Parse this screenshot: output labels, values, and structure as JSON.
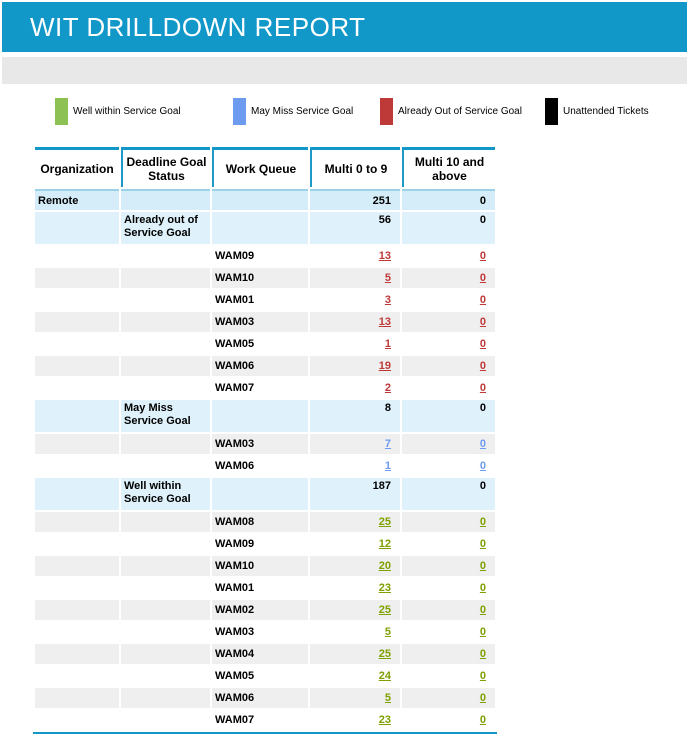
{
  "title": "WIT DRILLDOWN REPORT",
  "colors": {
    "header_bar": "#1297C9",
    "sub_bar": "#E8E8E8",
    "org_row_bg": "#D4EDF9",
    "status_row_bg": "#DFF2FC",
    "shade_row_bg": "#EFEFEF",
    "red_link": "#BE3A39",
    "blue_link": "#6D9BF0",
    "green_link": "#7EA000"
  },
  "legend": [
    {
      "icon": "legend-swatch",
      "label": "Well within Service Goal",
      "color": "#8DC153"
    },
    {
      "icon": "legend-swatch",
      "label": "May Miss Service Goal",
      "color": "#6D9BF0"
    },
    {
      "icon": "legend-swatch",
      "label": "Already Out of Service Goal",
      "color": "#BE3A39"
    },
    {
      "icon": "legend-swatch",
      "label": "Unattended Tickets",
      "color": "#000000"
    }
  ],
  "table": {
    "columns": [
      "Organization",
      "Deadline Goal Status",
      "Work Queue",
      "Multi 0 to 9",
      "Multi 10 and above"
    ],
    "rows": [
      {
        "type": "org",
        "organization": "Remote",
        "multi_0_9": "251",
        "multi_10_above": "0"
      },
      {
        "type": "status",
        "status": "Already out of Service Goal",
        "multi_0_9": "56",
        "multi_10_above": "0"
      },
      {
        "type": "detail",
        "group": "already_out",
        "work_queue": "WAM09",
        "multi_0_9": "13",
        "multi_10_above": "0"
      },
      {
        "type": "detail",
        "group": "already_out",
        "work_queue": "WAM10",
        "multi_0_9": "5",
        "multi_10_above": "0"
      },
      {
        "type": "detail",
        "group": "already_out",
        "work_queue": "WAM01",
        "multi_0_9": "3",
        "multi_10_above": "0"
      },
      {
        "type": "detail",
        "group": "already_out",
        "work_queue": "WAM03",
        "multi_0_9": "13",
        "multi_10_above": "0"
      },
      {
        "type": "detail",
        "group": "already_out",
        "work_queue": "WAM05",
        "multi_0_9": "1",
        "multi_10_above": "0"
      },
      {
        "type": "detail",
        "group": "already_out",
        "work_queue": "WAM06",
        "multi_0_9": "19",
        "multi_10_above": "0"
      },
      {
        "type": "detail",
        "group": "already_out",
        "work_queue": "WAM07",
        "multi_0_9": "2",
        "multi_10_above": "0"
      },
      {
        "type": "status",
        "status": "May Miss Service Goal",
        "multi_0_9": "8",
        "multi_10_above": "0"
      },
      {
        "type": "detail",
        "group": "may_miss",
        "work_queue": "WAM03",
        "multi_0_9": "7",
        "multi_10_above": "0"
      },
      {
        "type": "detail",
        "group": "may_miss",
        "work_queue": "WAM06",
        "multi_0_9": "1",
        "multi_10_above": "0"
      },
      {
        "type": "status",
        "status": "Well within Service Goal",
        "multi_0_9": "187",
        "multi_10_above": "0"
      },
      {
        "type": "detail",
        "group": "well_within",
        "work_queue": "WAM08",
        "multi_0_9": "25",
        "multi_10_above": "0"
      },
      {
        "type": "detail",
        "group": "well_within",
        "work_queue": "WAM09",
        "multi_0_9": "12",
        "multi_10_above": "0"
      },
      {
        "type": "detail",
        "group": "well_within",
        "work_queue": "WAM10",
        "multi_0_9": "20",
        "multi_10_above": "0"
      },
      {
        "type": "detail",
        "group": "well_within",
        "work_queue": "WAM01",
        "multi_0_9": "23",
        "multi_10_above": "0"
      },
      {
        "type": "detail",
        "group": "well_within",
        "work_queue": "WAM02",
        "multi_0_9": "25",
        "multi_10_above": "0"
      },
      {
        "type": "detail",
        "group": "well_within",
        "work_queue": "WAM03",
        "multi_0_9": "5",
        "multi_10_above": "0"
      },
      {
        "type": "detail",
        "group": "well_within",
        "work_queue": "WAM04",
        "multi_0_9": "25",
        "multi_10_above": "0"
      },
      {
        "type": "detail",
        "group": "well_within",
        "work_queue": "WAM05",
        "multi_0_9": "24",
        "multi_10_above": "0"
      },
      {
        "type": "detail",
        "group": "well_within",
        "work_queue": "WAM06",
        "multi_0_9": "5",
        "multi_10_above": "0"
      },
      {
        "type": "detail",
        "group": "well_within",
        "work_queue": "WAM07",
        "multi_0_9": "23",
        "multi_10_above": "0"
      }
    ]
  }
}
